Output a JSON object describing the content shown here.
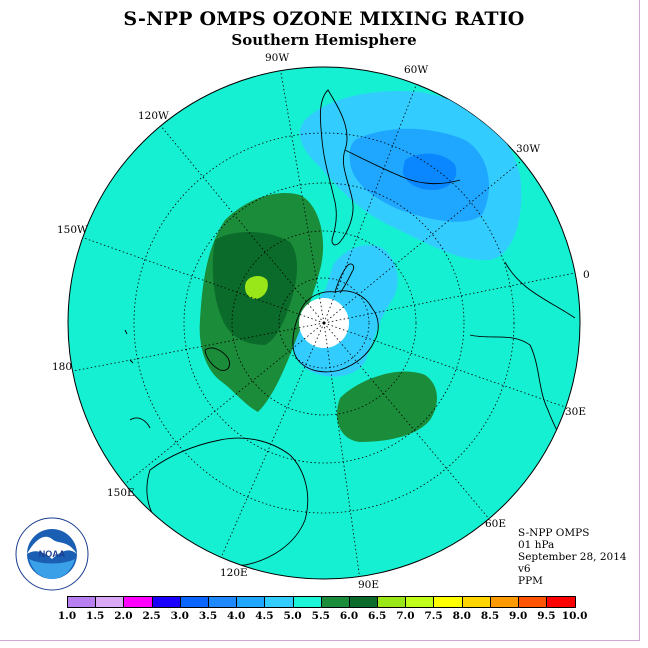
{
  "title": "S-NPP OMPS OZONE MIXING RATIO",
  "subtitle": "Southern Hemisphere",
  "longitude_labels": {
    "lon_90w": "90W",
    "lon_60w": "60W",
    "lon_30w": "30W",
    "lon_0": "0",
    "lon_30e": "30E",
    "lon_60e": "60E",
    "lon_90e": "90E",
    "lon_120e": "120E",
    "lon_150e": "150E",
    "lon_180": "180",
    "lon_150w": "150W",
    "lon_120w": "120W"
  },
  "info": {
    "instrument": "S-NPP OMPS",
    "level": "01 hPa",
    "date": "September 28, 2014",
    "version": "v6",
    "units": "PPM"
  },
  "logo": {
    "text": "NOAA",
    "ring_text": "NATIONAL OCEANIC AND ATMOSPHERIC ADMINISTRATION · U.S. DEPARTMENT OF COMMERCE"
  },
  "colorbar": {
    "ticks": [
      "1.0",
      "1.5",
      "2.0",
      "2.5",
      "3.0",
      "3.5",
      "4.0",
      "4.5",
      "5.0",
      "5.5",
      "6.0",
      "6.5",
      "7.0",
      "7.5",
      "8.0",
      "8.5",
      "9.0",
      "9.5",
      "10.0"
    ],
    "colors": [
      "#b87ff0",
      "#d9a9f5",
      "#ff00ff",
      "#1a00ff",
      "#0a66ff",
      "#1e88ff",
      "#1fa6ff",
      "#33ccff",
      "#1cf5d8",
      "#1a8c3a",
      "#0a6b2a",
      "#99e619",
      "#bfff19",
      "#ffff00",
      "#ffd500",
      "#ff9900",
      "#ff5500",
      "#ff0000",
      "#8b5a3c"
    ]
  },
  "map": {
    "background_color": "#16f0d2",
    "polar_void_color": "#ffffff"
  }
}
